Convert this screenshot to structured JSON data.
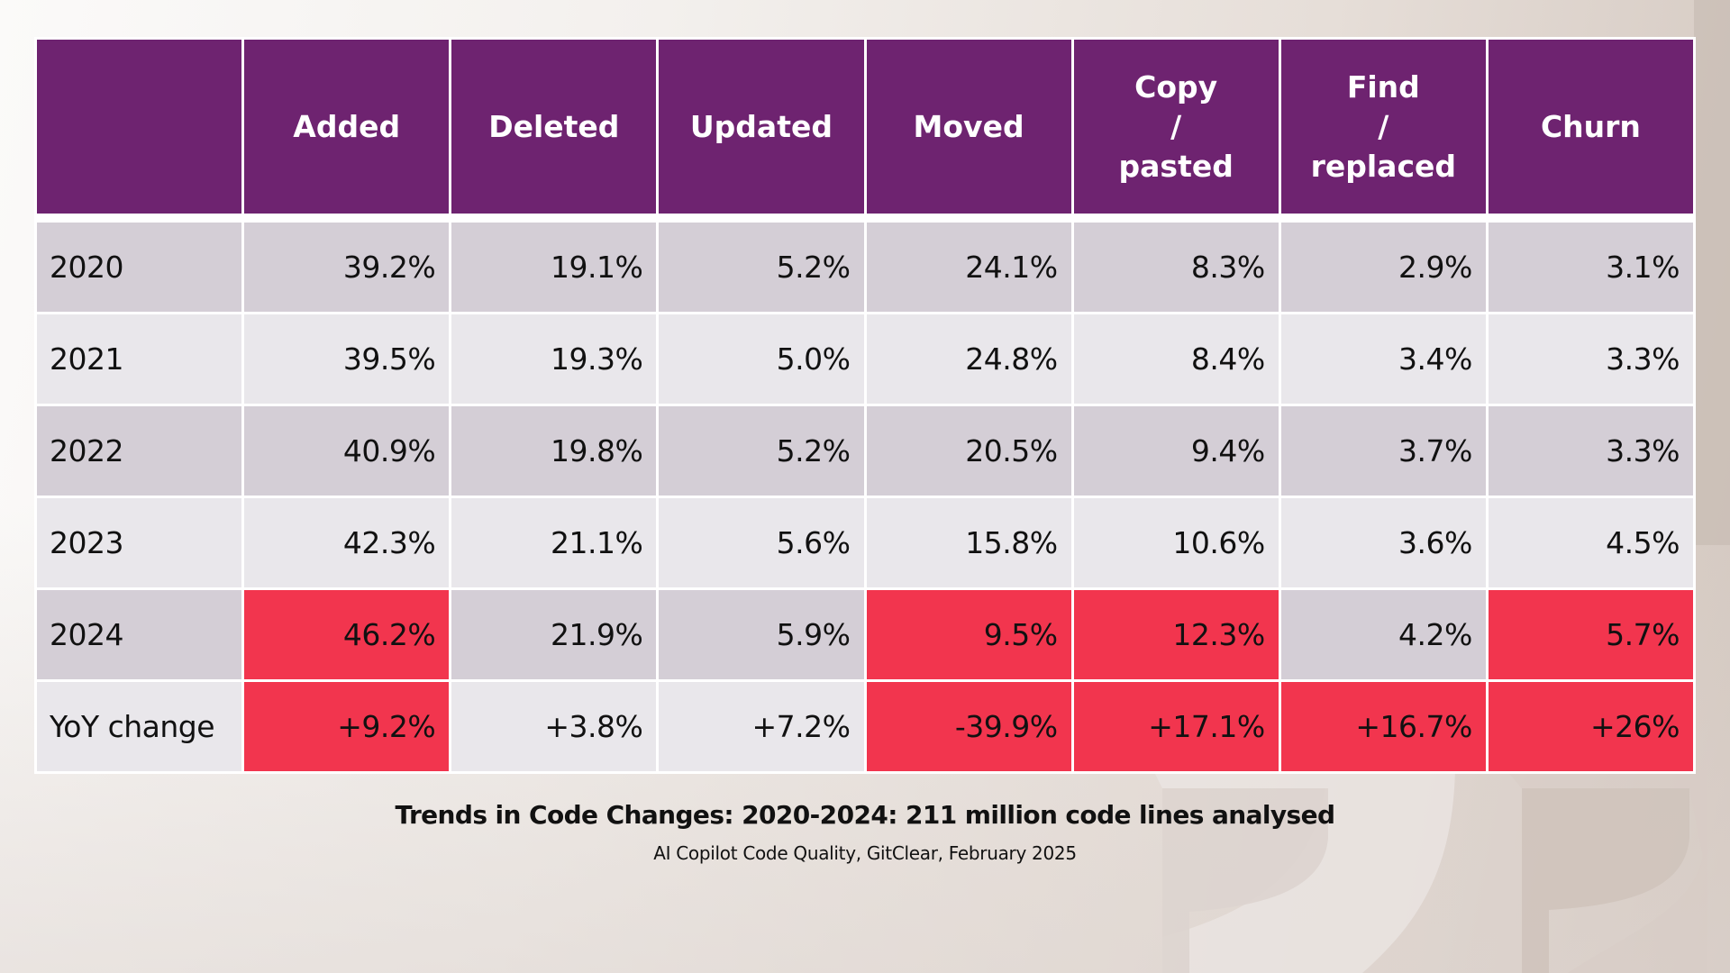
{
  "table": {
    "headers": [
      "",
      "Added",
      "Deleted",
      "Updated",
      "Moved",
      "Copy\n/\npasted",
      "Find\n/\nreplaced",
      "Churn"
    ],
    "rows": [
      {
        "label": "2020",
        "values": [
          "39.2%",
          "19.1%",
          "5.2%",
          "24.1%",
          "8.3%",
          "2.9%",
          "3.1%"
        ],
        "highlight": [
          false,
          false,
          false,
          false,
          false,
          false,
          false
        ]
      },
      {
        "label": "2021",
        "values": [
          "39.5%",
          "19.3%",
          "5.0%",
          "24.8%",
          "8.4%",
          "3.4%",
          "3.3%"
        ],
        "highlight": [
          false,
          false,
          false,
          false,
          false,
          false,
          false
        ]
      },
      {
        "label": "2022",
        "values": [
          "40.9%",
          "19.8%",
          "5.2%",
          "20.5%",
          "9.4%",
          "3.7%",
          "3.3%"
        ],
        "highlight": [
          false,
          false,
          false,
          false,
          false,
          false,
          false
        ]
      },
      {
        "label": "2023",
        "values": [
          "42.3%",
          "21.1%",
          "5.6%",
          "15.8%",
          "10.6%",
          "3.6%",
          "4.5%"
        ],
        "highlight": [
          false,
          false,
          false,
          false,
          false,
          false,
          false
        ]
      },
      {
        "label": "2024",
        "values": [
          "46.2%",
          "21.9%",
          "5.9%",
          "9.5%",
          "12.3%",
          "4.2%",
          "5.7%"
        ],
        "highlight": [
          true,
          false,
          false,
          true,
          true,
          false,
          true
        ]
      },
      {
        "label": "YoY change",
        "values": [
          "+9.2%",
          "+3.8%",
          "+7.2%",
          "-39.9%",
          "+17.1%",
          "+16.7%",
          "+26%"
        ],
        "highlight": [
          true,
          false,
          false,
          true,
          true,
          true,
          true
        ]
      }
    ]
  },
  "caption": {
    "title": "Trends in Code Changes: 2020-2024: 211 million code lines analysed",
    "source": "AI Copilot Code Quality, GitClear, February 2025"
  },
  "colors": {
    "header_bg": "#6e2370",
    "row_dark": "#d4ced6",
    "row_light": "#e9e7eb",
    "highlight": "#f2354e"
  },
  "decorations": {
    "background_icon": "quote-mark-icon"
  }
}
